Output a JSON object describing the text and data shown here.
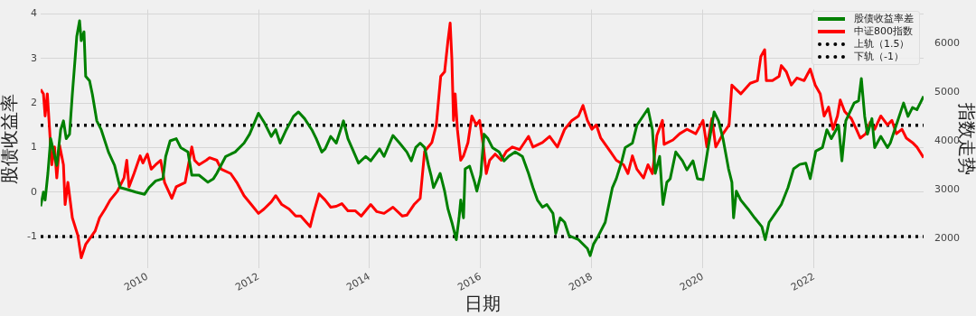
{
  "chart_data": {
    "type": "line",
    "xlabel": "日期",
    "ylabel": "股债收益率",
    "y2label": "指数走势",
    "xlim": [
      2008.08,
      2023.97
    ],
    "xticks": [
      2010,
      2012,
      2014,
      2016,
      2018,
      2020,
      2022
    ],
    "ylim": [
      -1.71,
      4.1
    ],
    "yticks": [
      -1,
      0,
      1,
      2,
      3,
      4
    ],
    "y2lim": [
      1400,
      6690
    ],
    "y2ticks": [
      2000,
      3000,
      4000,
      5000,
      6000
    ],
    "grid": true,
    "legend": "top right",
    "marker": "none",
    "line_style": "solid",
    "series": [
      {
        "name": "股债收益率差",
        "color": "#008000",
        "x": [
          2008.08,
          2008.13,
          2008.16,
          2008.21,
          2008.26,
          2008.33,
          2008.37,
          2008.44,
          2008.49,
          2008.54,
          2008.6,
          2008.65,
          2008.7,
          2008.73,
          2008.78,
          2008.81,
          2008.86,
          2008.89,
          2008.96,
          2009.01,
          2009.09,
          2009.17,
          2009.3,
          2009.41,
          2009.51,
          2009.63,
          2009.79,
          2009.95,
          2010.03,
          2010.15,
          2010.28,
          2010.33,
          2010.41,
          2010.52,
          2010.6,
          2010.73,
          2010.8,
          2010.93,
          2011.09,
          2011.19,
          2011.25,
          2011.41,
          2011.58,
          2011.74,
          2011.84,
          2012.0,
          2012.11,
          2012.23,
          2012.31,
          2012.39,
          2012.5,
          2012.63,
          2012.72,
          2012.83,
          2012.96,
          2013.04,
          2013.14,
          2013.2,
          2013.3,
          2013.4,
          2013.53,
          2013.61,
          2013.69,
          2013.8,
          2013.93,
          2014.02,
          2014.18,
          2014.26,
          2014.42,
          2014.54,
          2014.67,
          2014.75,
          2014.83,
          2014.91,
          2014.99,
          2015.06,
          2015.11,
          2015.15,
          2015.27,
          2015.35,
          2015.41,
          2015.48,
          2015.56,
          2015.61,
          2015.64,
          2015.69,
          2015.72,
          2015.8,
          2015.89,
          2015.93,
          2016.0,
          2016.06,
          2016.13,
          2016.21,
          2016.33,
          2016.42,
          2016.5,
          2016.62,
          2016.75,
          2016.86,
          2016.94,
          2017.02,
          2017.11,
          2017.19,
          2017.3,
          2017.35,
          2017.43,
          2017.51,
          2017.59,
          2017.76,
          2017.92,
          2017.97,
          2018.03,
          2018.11,
          2018.24,
          2018.37,
          2018.44,
          2018.54,
          2018.6,
          2018.73,
          2018.81,
          2019.01,
          2019.09,
          2019.14,
          2019.22,
          2019.28,
          2019.35,
          2019.41,
          2019.51,
          2019.63,
          2019.71,
          2019.82,
          2019.9,
          2020.0,
          2020.08,
          2020.2,
          2020.28,
          2020.36,
          2020.46,
          2020.52,
          2020.55,
          2020.6,
          2020.68,
          2020.81,
          2020.93,
          2021.06,
          2021.12,
          2021.19,
          2021.3,
          2021.41,
          2021.53,
          2021.63,
          2021.74,
          2021.85,
          2021.93,
          2022.03,
          2022.15,
          2022.23,
          2022.31,
          2022.44,
          2022.5,
          2022.57,
          2022.72,
          2022.8,
          2022.85,
          2022.91,
          2022.96,
          2023.04,
          2023.09,
          2023.2,
          2023.32,
          2023.37,
          2023.45,
          2023.53,
          2023.61,
          2023.69,
          2023.77,
          2023.85,
          2023.97
        ],
        "values": [
          -0.32,
          0,
          -0.18,
          0.42,
          1.2,
          0.82,
          0.6,
          1.4,
          1.6,
          1.2,
          1.3,
          2.2,
          3.0,
          3.5,
          3.85,
          3.4,
          3.6,
          2.6,
          2.5,
          2.2,
          1.6,
          1.4,
          0.9,
          0.6,
          0.1,
          0.06,
          0,
          -0.05,
          0.1,
          0.25,
          0.3,
          0.8,
          1.15,
          1.2,
          1.0,
          0.9,
          0.38,
          0.38,
          0.22,
          0.3,
          0.42,
          0.8,
          0.9,
          1.1,
          1.3,
          1.77,
          1.55,
          1.25,
          1.4,
          1.1,
          1.4,
          1.7,
          1.8,
          1.65,
          1.4,
          1.2,
          0.9,
          0.97,
          1.25,
          1.1,
          1.6,
          1.2,
          0.97,
          0.65,
          0.8,
          0.7,
          0.97,
          0.8,
          1.27,
          1.1,
          0.9,
          0.7,
          1.0,
          1.1,
          1.0,
          0.6,
          0.35,
          0.1,
          0.42,
          0.02,
          -0.38,
          -0.68,
          -1.07,
          -0.58,
          -0.18,
          -0.58,
          0.52,
          0.58,
          0.22,
          0.02,
          0.38,
          1.3,
          1.2,
          1.0,
          0.9,
          0.7,
          0.8,
          0.9,
          0.8,
          0.42,
          0.1,
          -0.18,
          -0.34,
          -0.28,
          -0.48,
          -0.93,
          -0.58,
          -0.68,
          -0.98,
          -1.07,
          -1.27,
          -1.43,
          -1.17,
          -1.0,
          -0.68,
          0.1,
          0.3,
          0.7,
          1.0,
          1.1,
          1.5,
          1.87,
          1.4,
          0.42,
          0.8,
          -0.28,
          0.22,
          0.3,
          0.9,
          0.7,
          0.5,
          0.7,
          0.3,
          0.28,
          0.9,
          1.8,
          1.6,
          1.2,
          0.52,
          0.22,
          -0.58,
          0.02,
          -0.18,
          -0.38,
          -0.58,
          -0.78,
          -1.07,
          -0.68,
          -0.48,
          -0.28,
          0.1,
          0.52,
          0.62,
          0.65,
          0.3,
          0.92,
          1.0,
          1.4,
          1.2,
          1.5,
          0.7,
          1.6,
          2.0,
          2.05,
          2.55,
          1.7,
          1.3,
          1.65,
          1.0,
          1.25,
          1.0,
          1.1,
          1.4,
          1.7,
          2.0,
          1.7,
          1.9,
          1.85,
          2.15
        ]
      },
      {
        "name": "中证800指数",
        "color": "#ff0000",
        "axis": "y2",
        "x": [
          2008.08,
          2008.13,
          2008.16,
          2008.2,
          2008.24,
          2008.28,
          2008.33,
          2008.37,
          2008.42,
          2008.49,
          2008.52,
          2008.57,
          2008.65,
          2008.75,
          2008.81,
          2008.89,
          2008.98,
          2009.06,
          2009.14,
          2009.24,
          2009.33,
          2009.46,
          2009.58,
          2009.63,
          2009.67,
          2009.76,
          2009.87,
          2009.92,
          2010.0,
          2010.07,
          2010.15,
          2010.24,
          2010.31,
          2010.44,
          2010.52,
          2010.68,
          2010.8,
          2010.85,
          2010.93,
          2011.06,
          2011.12,
          2011.25,
          2011.33,
          2011.5,
          2011.61,
          2011.74,
          2011.87,
          2012.0,
          2012.1,
          2012.23,
          2012.31,
          2012.42,
          2012.55,
          2012.67,
          2012.76,
          2012.93,
          2012.99,
          2013.09,
          2013.2,
          2013.3,
          2013.4,
          2013.5,
          2013.61,
          2013.74,
          2013.85,
          2014.02,
          2014.13,
          2014.26,
          2014.42,
          2014.59,
          2014.67,
          2014.8,
          2014.91,
          2014.93,
          2014.99,
          2015.12,
          2015.2,
          2015.28,
          2015.35,
          2015.41,
          2015.45,
          2015.48,
          2015.51,
          2015.54,
          2015.58,
          2015.64,
          2015.69,
          2015.77,
          2015.84,
          2015.92,
          2015.98,
          2016.05,
          2016.1,
          2016.16,
          2016.26,
          2016.37,
          2016.46,
          2016.57,
          2016.7,
          2016.86,
          2016.94,
          2017.11,
          2017.24,
          2017.38,
          2017.51,
          2017.64,
          2017.76,
          2017.84,
          2017.92,
          2018.0,
          2018.08,
          2018.16,
          2018.33,
          2018.44,
          2018.57,
          2018.65,
          2018.73,
          2018.81,
          2018.93,
          2019.01,
          2019.09,
          2019.17,
          2019.27,
          2019.3,
          2019.46,
          2019.58,
          2019.71,
          2019.87,
          2020.0,
          2020.07,
          2020.16,
          2020.23,
          2020.36,
          2020.47,
          2020.52,
          2020.6,
          2020.68,
          2020.85,
          2020.98,
          2021.04,
          2021.11,
          2021.14,
          2021.25,
          2021.37,
          2021.41,
          2021.5,
          2021.59,
          2021.69,
          2021.82,
          2021.93,
          2022.02,
          2022.11,
          2022.18,
          2022.26,
          2022.34,
          2022.42,
          2022.47,
          2022.55,
          2022.67,
          2022.76,
          2022.83,
          2022.93,
          2023.01,
          2023.09,
          2023.2,
          2023.32,
          2023.4,
          2023.48,
          2023.58,
          2023.66,
          2023.77,
          2023.85,
          2023.97
        ],
        "values": [
          5056,
          4966,
          4513,
          4966,
          4241,
          3516,
          3878,
          3245,
          3914,
          3516,
          2701,
          3154,
          2429,
          2067,
          1614,
          1886,
          2031,
          2158,
          2429,
          2610,
          2792,
          2973,
          3245,
          3607,
          3064,
          3335,
          3697,
          3552,
          3733,
          3425,
          3516,
          3607,
          3154,
          2828,
          3064,
          3154,
          3878,
          3607,
          3516,
          3607,
          3660,
          3607,
          3425,
          3335,
          3154,
          2883,
          2701,
          2520,
          2610,
          2755,
          2883,
          2701,
          2610,
          2466,
          2466,
          2248,
          2520,
          2919,
          2792,
          2647,
          2665,
          2720,
          2574,
          2574,
          2466,
          2701,
          2556,
          2520,
          2647,
          2466,
          2484,
          2701,
          2828,
          3064,
          3788,
          3969,
          4331,
          5327,
          5418,
          6052,
          6414,
          5690,
          4422,
          4966,
          4241,
          3607,
          3697,
          3969,
          4513,
          4331,
          4422,
          3878,
          3335,
          3607,
          3733,
          3607,
          3788,
          3878,
          3824,
          4096,
          3878,
          3969,
          4096,
          3878,
          4241,
          4422,
          4513,
          4730,
          4422,
          4241,
          4331,
          4060,
          3788,
          3607,
          3516,
          3335,
          3697,
          3425,
          3245,
          3516,
          3335,
          4114,
          4422,
          3932,
          4023,
          4150,
          4241,
          4150,
          4422,
          3878,
          4459,
          3878,
          4150,
          4331,
          5146,
          5056,
          4966,
          5182,
          5236,
          5725,
          5870,
          5236,
          5236,
          5327,
          5544,
          5418,
          5146,
          5291,
          5236,
          5472,
          5146,
          4966,
          4513,
          4694,
          4241,
          4513,
          4839,
          4604,
          4459,
          4241,
          4060,
          4150,
          4386,
          4241,
          4513,
          4331,
          4422,
          4150,
          4241,
          4060,
          3969,
          3878,
          3661
        ]
      }
    ],
    "ref_lines": [
      {
        "axis": "y",
        "value": 1.5,
        "label": "上轨（1.5）",
        "color": "#000000",
        "line_style": "dotted"
      },
      {
        "axis": "y",
        "value": -1,
        "label": "下轨（-1）",
        "color": "#000000",
        "line_style": "dotted"
      }
    ]
  }
}
